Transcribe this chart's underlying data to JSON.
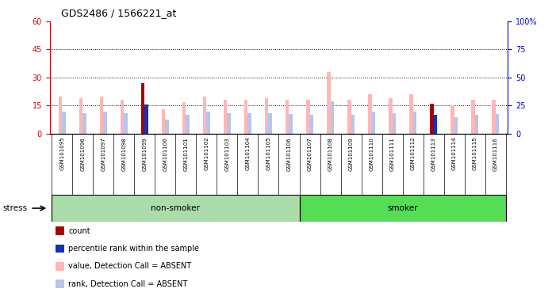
{
  "title": "GDS2486 / 1566221_at",
  "samples": [
    "GSM101095",
    "GSM101096",
    "GSM101097",
    "GSM101098",
    "GSM101099",
    "GSM101100",
    "GSM101101",
    "GSM101102",
    "GSM101103",
    "GSM101104",
    "GSM101105",
    "GSM101106",
    "GSM101107",
    "GSM101108",
    "GSM101109",
    "GSM101110",
    "GSM101111",
    "GSM101112",
    "GSM101113",
    "GSM101114",
    "GSM101115",
    "GSM101116"
  ],
  "non_smoker_count": 12,
  "smoker_count": 10,
  "value_absent": [
    20.0,
    19.0,
    20.0,
    18.0,
    27.0,
    13.0,
    17.0,
    20.0,
    18.0,
    18.0,
    19.0,
    18.0,
    18.0,
    33.0,
    18.0,
    21.0,
    19.0,
    21.0,
    16.0,
    15.0,
    18.0,
    18.0
  ],
  "rank_absent": [
    20.0,
    18.0,
    19.5,
    18.0,
    26.0,
    12.5,
    17.0,
    19.5,
    18.0,
    18.5,
    18.5,
    17.5,
    17.0,
    29.0,
    17.0,
    20.0,
    18.5,
    20.0,
    15.0,
    14.5,
    17.0,
    17.5
  ],
  "count": [
    0,
    0,
    0,
    0,
    27,
    0,
    0,
    0,
    0,
    0,
    0,
    0,
    0,
    0,
    0,
    0,
    0,
    0,
    16,
    0,
    0,
    0
  ],
  "percentile": [
    0,
    0,
    0,
    0,
    26,
    0,
    0,
    0,
    0,
    0,
    0,
    0,
    0,
    0,
    0,
    0,
    0,
    0,
    17,
    0,
    0,
    0
  ],
  "ylim_left": [
    0,
    60
  ],
  "ylim_right": [
    0,
    100
  ],
  "yticks_left": [
    0,
    15,
    30,
    45,
    60
  ],
  "yticks_right": [
    0,
    25,
    50,
    75,
    100
  ],
  "grid_lines": [
    15,
    30,
    45
  ],
  "color_value_absent": "#FFB6B6",
  "color_rank_absent": "#B8C4EE",
  "color_count": "#AA0000",
  "color_percentile": "#1133BB",
  "color_left_axis": "#CC0000",
  "color_right_axis": "#0000CC",
  "nonsmoker_color": "#AADDAA",
  "smoker_color": "#55DD55",
  "bg_color": "#C8C8C8",
  "bar_width": 0.18,
  "fig_width": 6.96,
  "fig_height": 3.84,
  "dpi": 100
}
